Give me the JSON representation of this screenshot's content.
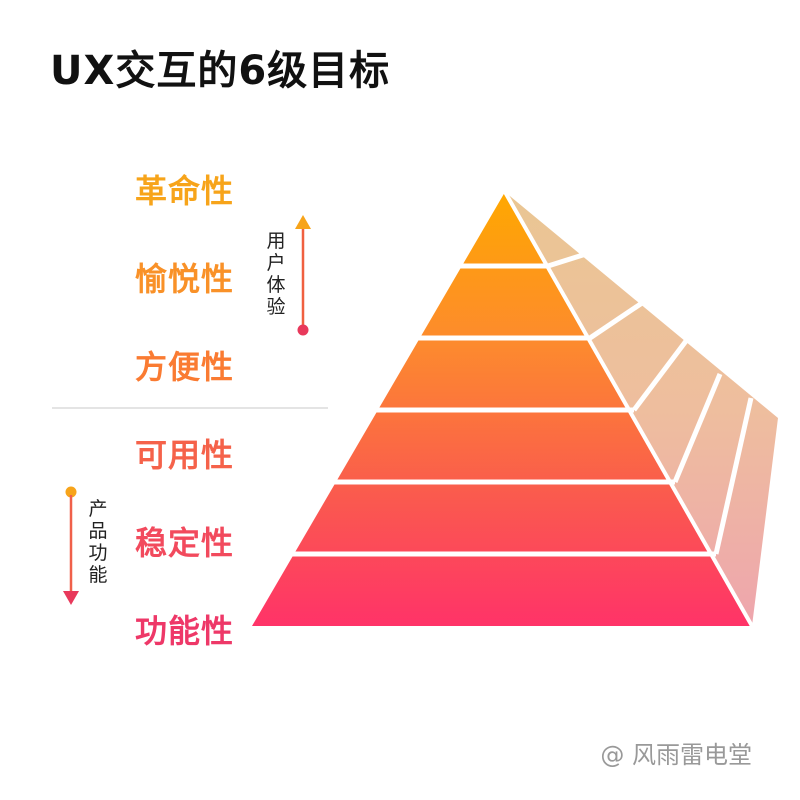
{
  "title": "UX交互的6级目标",
  "levels": [
    {
      "label": "革命性",
      "color": "#f7a41a"
    },
    {
      "label": "愉悦性",
      "color": "#f99128"
    },
    {
      "label": "方便性",
      "color": "#fa7b32"
    },
    {
      "label": "可用性",
      "color": "#f5624a"
    },
    {
      "label": "稳定性",
      "color": "#f24a5d"
    },
    {
      "label": "功能性",
      "color": "#ee3868"
    }
  ],
  "groups": {
    "user_experience": {
      "label": "用户体验",
      "color": "#e8395b",
      "arrow_color": "#f7a41a"
    },
    "product_function": {
      "label": "产品功能",
      "color": "#f7a41a",
      "arrow_color": "#e8395b"
    }
  },
  "watermark": "@ 风雨雷电堂"
}
